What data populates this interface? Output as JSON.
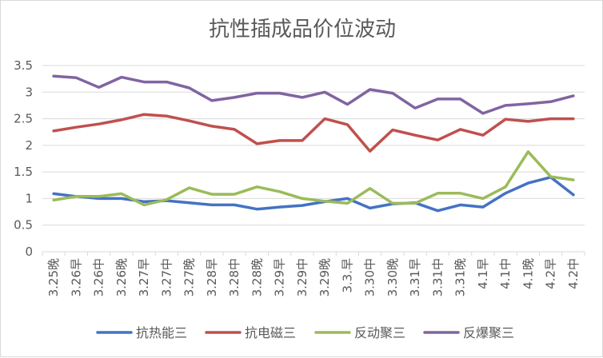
{
  "chart_data": {
    "type": "line",
    "title": "抗性插成品价位波动",
    "xlabel": "",
    "ylabel": "",
    "ylim": [
      0,
      3.5
    ],
    "yticks": [
      "0",
      "0.5",
      "1",
      "1.5",
      "2",
      "2.5",
      "3",
      "3.5"
    ],
    "grid": true,
    "legend_position": "bottom",
    "categories": [
      "3.25晚",
      "3.26早",
      "3.26中",
      "3.26晚",
      "3.27早",
      "3.27中",
      "3.27晚",
      "3.28早",
      "3.28中",
      "3.28晚",
      "3.29早",
      "3.29中",
      "3.29晚",
      "3.3.早",
      "3.30中",
      "3.30晚",
      "3.31早",
      "3.31中",
      "3.31晚",
      "4.1早",
      "4.1中",
      "4.1晚",
      "4.2早",
      "4.2中"
    ],
    "series": [
      {
        "name": "抗热能三",
        "color": "#4472C4",
        "values": [
          1.09,
          1.04,
          1.0,
          1.0,
          0.94,
          0.96,
          0.92,
          0.88,
          0.88,
          0.8,
          0.84,
          0.87,
          0.94,
          1.0,
          0.82,
          0.9,
          0.92,
          0.77,
          0.88,
          0.84,
          1.1,
          1.29,
          1.4,
          1.07
        ]
      },
      {
        "name": "抗电磁三",
        "color": "#C0504D",
        "values": [
          2.27,
          2.34,
          2.4,
          2.48,
          2.58,
          2.55,
          2.46,
          2.36,
          2.3,
          2.03,
          2.09,
          2.09,
          2.5,
          2.39,
          1.89,
          2.29,
          2.19,
          2.1,
          2.3,
          2.19,
          2.49,
          2.45,
          2.5,
          2.5
        ]
      },
      {
        "name": "反动聚三",
        "color": "#9BBB59",
        "values": [
          0.97,
          1.04,
          1.04,
          1.09,
          0.88,
          0.98,
          1.2,
          1.08,
          1.08,
          1.22,
          1.13,
          1.0,
          0.95,
          0.91,
          1.19,
          0.91,
          0.91,
          1.1,
          1.1,
          1.0,
          1.22,
          1.88,
          1.41,
          1.35
        ]
      },
      {
        "name": "反爆聚三",
        "color": "#8064A2",
        "values": [
          3.3,
          3.27,
          3.09,
          3.28,
          3.19,
          3.19,
          3.08,
          2.84,
          2.9,
          2.98,
          2.98,
          2.9,
          3.0,
          2.77,
          3.05,
          2.98,
          2.7,
          2.87,
          2.87,
          2.6,
          2.75,
          2.78,
          2.82,
          2.93
        ]
      }
    ]
  }
}
